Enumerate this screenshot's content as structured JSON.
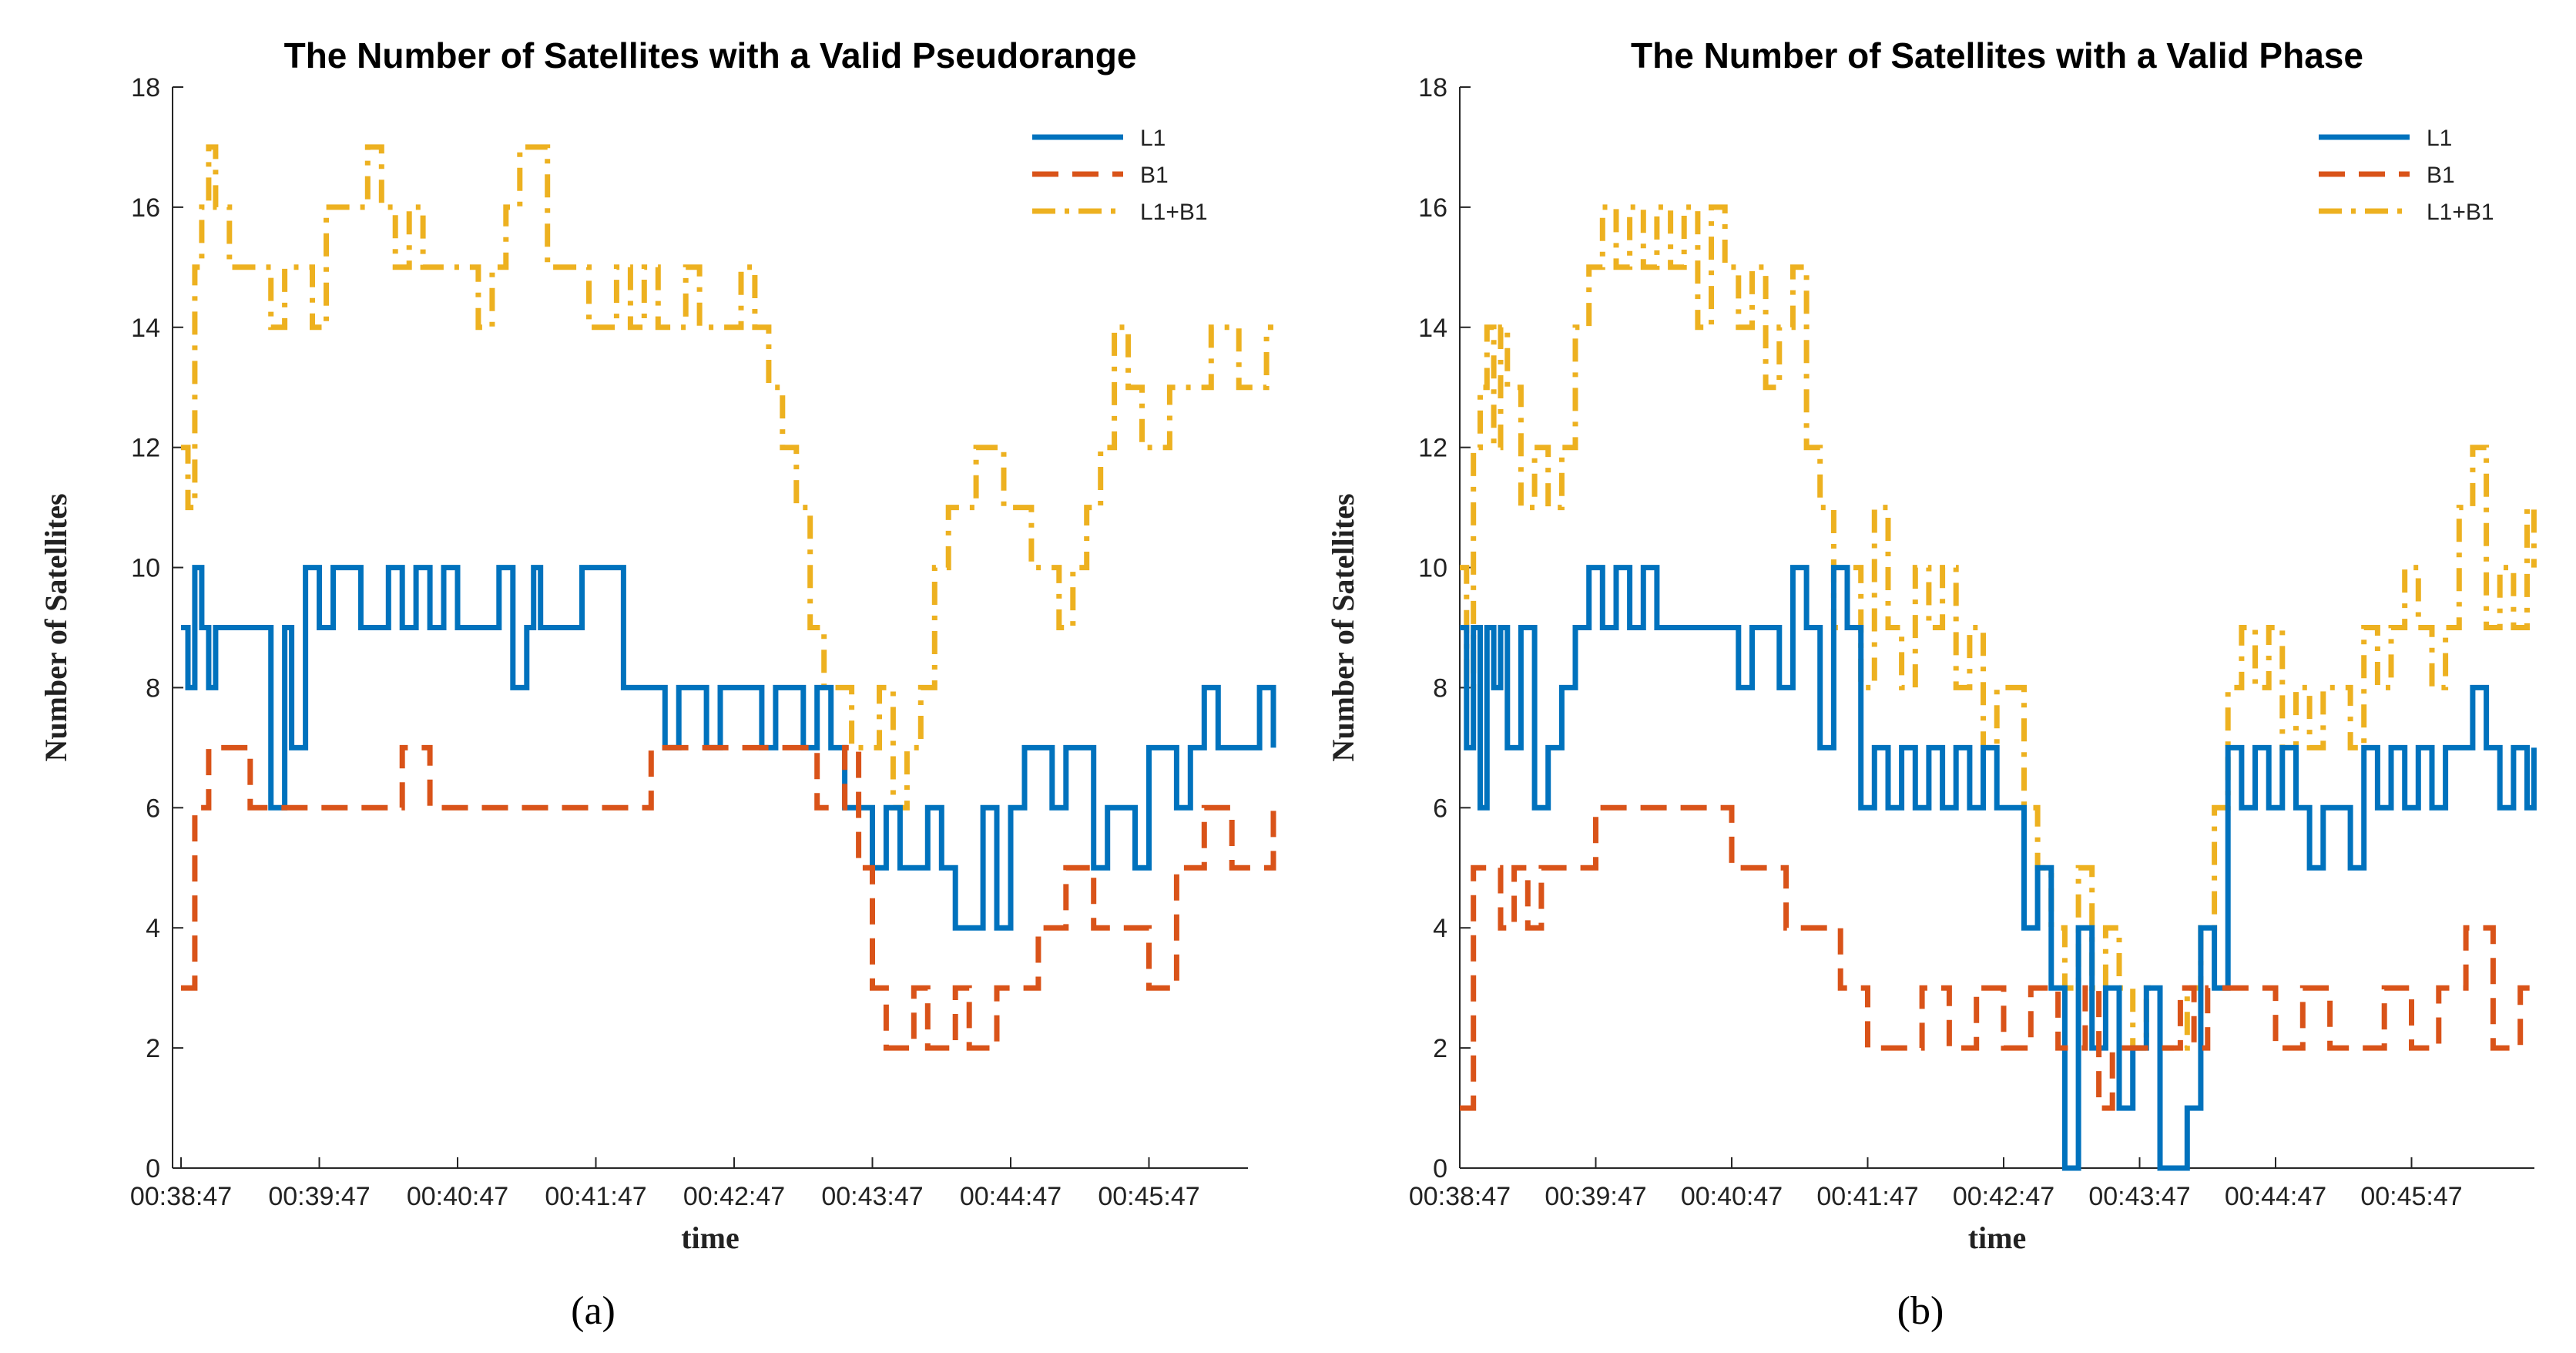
{
  "chart_data": [
    {
      "id": "a",
      "type": "line",
      "title": "The Number of Satellites with a Valid Pseudorange",
      "xlabel": "time",
      "ylabel": "Number of Satellites",
      "caption": "(a)",
      "ylim": [
        0,
        18
      ],
      "yticks": [
        "0",
        "2",
        "4",
        "6",
        "8",
        "10",
        "12",
        "14",
        "16",
        "18"
      ],
      "xlim": [
        0,
        8.0
      ],
      "xticks": [
        {
          "pos": 0,
          "label": "00:38:47"
        },
        {
          "pos": 1,
          "label": "00:39:47"
        },
        {
          "pos": 2,
          "label": "00:40:47"
        },
        {
          "pos": 3,
          "label": "00:41:47"
        },
        {
          "pos": 4,
          "label": "00:42:47"
        },
        {
          "pos": 5,
          "label": "00:43:47"
        },
        {
          "pos": 6,
          "label": "00:44:47"
        },
        {
          "pos": 7,
          "label": "00:45:47"
        }
      ],
      "legend_position": "top-right",
      "series": [
        {
          "name": "L1",
          "color": "#0072BD",
          "style": "solid",
          "x": [
            0,
            0.05,
            0.1,
            0.15,
            0.2,
            0.25,
            0.3,
            0.35,
            0.45,
            0.55,
            0.65,
            0.75,
            0.8,
            0.9,
            1.0,
            1.1,
            1.3,
            1.5,
            1.6,
            1.7,
            1.8,
            1.9,
            2.0,
            2.1,
            2.2,
            2.3,
            2.4,
            2.5,
            2.55,
            2.6,
            2.7,
            2.8,
            2.9,
            3.0,
            3.1,
            3.2,
            3.3,
            3.4,
            3.5,
            3.6,
            3.7,
            3.8,
            3.9,
            4.0,
            4.1,
            4.2,
            4.3,
            4.4,
            4.5,
            4.6,
            4.7,
            4.8,
            4.9,
            5.0,
            5.1,
            5.2,
            5.3,
            5.4,
            5.5,
            5.6,
            5.7,
            5.8,
            5.9,
            6.0,
            6.1,
            6.2,
            6.3,
            6.4,
            6.5,
            6.6,
            6.7,
            6.8,
            6.9,
            7.0,
            7.1,
            7.2,
            7.3,
            7.4,
            7.5,
            7.6,
            7.7,
            7.8,
            7.9
          ],
          "y": [
            9,
            8,
            10,
            9,
            8,
            9,
            9,
            9,
            9,
            9,
            6,
            9,
            7,
            10,
            9,
            10,
            9,
            10,
            9,
            10,
            9,
            10,
            9,
            9,
            9,
            10,
            8,
            9,
            10,
            9,
            9,
            9,
            10,
            10,
            10,
            8,
            8,
            8,
            7,
            8,
            8,
            7,
            8,
            8,
            8,
            7,
            8,
            8,
            7,
            8,
            7,
            6,
            6,
            5,
            6,
            5,
            5,
            6,
            5,
            4,
            4,
            6,
            4,
            6,
            7,
            7,
            6,
            7,
            7,
            5,
            6,
            6,
            5,
            7,
            7,
            6,
            7,
            8,
            7,
            7,
            7,
            8,
            7
          ]
        },
        {
          "name": "B1",
          "color": "#D95319",
          "style": "dashed",
          "x": [
            0,
            0.05,
            0.1,
            0.2,
            0.3,
            0.4,
            0.5,
            0.6,
            0.8,
            1.0,
            1.2,
            1.4,
            1.6,
            1.8,
            2.0,
            2.2,
            2.4,
            2.6,
            2.8,
            3.0,
            3.2,
            3.4,
            3.6,
            3.8,
            4.0,
            4.2,
            4.4,
            4.6,
            4.7,
            4.8,
            4.9,
            5.0,
            5.1,
            5.2,
            5.3,
            5.4,
            5.5,
            5.6,
            5.7,
            5.8,
            5.9,
            6.0,
            6.2,
            6.4,
            6.6,
            6.8,
            7.0,
            7.2,
            7.4,
            7.6,
            7.8,
            7.9
          ],
          "y": [
            3,
            3,
            6,
            7,
            7,
            7,
            6,
            6,
            6,
            6,
            6,
            6,
            7,
            6,
            6,
            6,
            6,
            6,
            6,
            6,
            6,
            7,
            7,
            7,
            7,
            7,
            7,
            6,
            6,
            7,
            5,
            3,
            2,
            2,
            3,
            2,
            2,
            3,
            2,
            2,
            3,
            3,
            4,
            5,
            4,
            4,
            3,
            5,
            6,
            5,
            5,
            6
          ]
        },
        {
          "name": "L1+B1",
          "color": "#EDB120",
          "style": "dashdot",
          "x": [
            0,
            0.05,
            0.1,
            0.15,
            0.2,
            0.25,
            0.3,
            0.35,
            0.45,
            0.55,
            0.65,
            0.75,
            0.85,
            0.95,
            1.05,
            1.15,
            1.25,
            1.35,
            1.45,
            1.55,
            1.65,
            1.75,
            1.85,
            1.95,
            2.05,
            2.15,
            2.25,
            2.35,
            2.45,
            2.55,
            2.65,
            2.75,
            2.85,
            2.95,
            3.05,
            3.15,
            3.25,
            3.35,
            3.45,
            3.55,
            3.65,
            3.75,
            3.85,
            3.95,
            4.05,
            4.15,
            4.25,
            4.35,
            4.45,
            4.55,
            4.65,
            4.75,
            4.85,
            4.95,
            5.05,
            5.15,
            5.25,
            5.35,
            5.45,
            5.55,
            5.65,
            5.75,
            5.85,
            5.95,
            6.05,
            6.15,
            6.25,
            6.35,
            6.45,
            6.55,
            6.65,
            6.75,
            6.85,
            6.95,
            7.05,
            7.15,
            7.25,
            7.35,
            7.45,
            7.55,
            7.65,
            7.75,
            7.85,
            7.9
          ],
          "y": [
            12,
            11,
            15,
            16,
            17,
            16,
            16,
            15,
            15,
            15,
            14,
            15,
            15,
            14,
            16,
            16,
            16,
            17,
            16,
            15,
            16,
            15,
            15,
            15,
            15,
            14,
            15,
            16,
            17,
            17,
            15,
            15,
            15,
            14,
            14,
            15,
            14,
            15,
            14,
            14,
            15,
            14,
            14,
            14,
            15,
            14,
            13,
            12,
            11,
            9,
            8,
            8,
            7,
            7,
            8,
            6,
            7,
            8,
            10,
            11,
            11,
            12,
            12,
            11,
            11,
            10,
            10,
            9,
            10,
            11,
            12,
            14,
            13,
            12,
            12,
            13,
            13,
            13,
            14,
            14,
            13,
            13,
            14,
            14
          ]
        }
      ]
    },
    {
      "id": "b",
      "type": "line",
      "title": "The Number of Satellites with a Valid Phase",
      "xlabel": "time",
      "ylabel": "Number of Satellites",
      "caption": "(b)",
      "ylim": [
        0,
        18
      ],
      "yticks": [
        "0",
        "2",
        "4",
        "6",
        "8",
        "10",
        "12",
        "14",
        "16",
        "18"
      ],
      "xlim": [
        0,
        8.0
      ],
      "xticks": [
        {
          "pos": 0,
          "label": "00:38:47"
        },
        {
          "pos": 1,
          "label": "00:39:47"
        },
        {
          "pos": 2,
          "label": "00:40:47"
        },
        {
          "pos": 3,
          "label": "00:41:47"
        },
        {
          "pos": 4,
          "label": "00:42:47"
        },
        {
          "pos": 5,
          "label": "00:43:47"
        },
        {
          "pos": 6,
          "label": "00:44:47"
        },
        {
          "pos": 7,
          "label": "00:45:47"
        }
      ],
      "legend_position": "top-right",
      "series": [
        {
          "name": "L1",
          "color": "#0072BD",
          "style": "solid",
          "x": [
            0,
            0.05,
            0.1,
            0.15,
            0.2,
            0.25,
            0.3,
            0.35,
            0.45,
            0.55,
            0.65,
            0.75,
            0.85,
            0.95,
            1.05,
            1.15,
            1.25,
            1.35,
            1.45,
            1.55,
            1.65,
            1.75,
            1.85,
            1.95,
            2.05,
            2.15,
            2.25,
            2.35,
            2.45,
            2.55,
            2.65,
            2.75,
            2.85,
            2.95,
            3.05,
            3.15,
            3.25,
            3.35,
            3.45,
            3.55,
            3.65,
            3.75,
            3.85,
            3.95,
            4.05,
            4.15,
            4.25,
            4.35,
            4.45,
            4.55,
            4.65,
            4.75,
            4.85,
            4.95,
            5.05,
            5.15,
            5.25,
            5.35,
            5.45,
            5.55,
            5.65,
            5.75,
            5.85,
            5.95,
            6.05,
            6.15,
            6.25,
            6.35,
            6.45,
            6.55,
            6.65,
            6.75,
            6.85,
            6.95,
            7.05,
            7.15,
            7.25,
            7.35,
            7.45,
            7.55,
            7.65,
            7.75,
            7.85,
            7.9
          ],
          "y": [
            9,
            7,
            9,
            6,
            9,
            8,
            9,
            7,
            9,
            6,
            7,
            8,
            9,
            10,
            9,
            10,
            9,
            10,
            9,
            9,
            9,
            9,
            9,
            9,
            8,
            9,
            9,
            8,
            10,
            9,
            7,
            10,
            9,
            6,
            7,
            6,
            7,
            6,
            7,
            6,
            7,
            6,
            7,
            6,
            6,
            4,
            5,
            3,
            0,
            4,
            2,
            3,
            1,
            2,
            3,
            0,
            0,
            1,
            4,
            3,
            7,
            6,
            7,
            6,
            7,
            6,
            5,
            6,
            6,
            5,
            7,
            6,
            7,
            6,
            7,
            6,
            7,
            7,
            8,
            7,
            6,
            7,
            6,
            7
          ]
        },
        {
          "name": "B1",
          "color": "#D95319",
          "style": "dashed",
          "x": [
            0,
            0.05,
            0.1,
            0.2,
            0.3,
            0.4,
            0.5,
            0.6,
            0.8,
            1.0,
            1.2,
            1.4,
            1.6,
            1.8,
            2.0,
            2.2,
            2.4,
            2.6,
            2.8,
            3.0,
            3.2,
            3.4,
            3.6,
            3.8,
            4.0,
            4.2,
            4.4,
            4.6,
            4.7,
            4.8,
            4.9,
            5.0,
            5.1,
            5.2,
            5.3,
            5.4,
            5.5,
            5.6,
            5.7,
            5.8,
            5.9,
            6.0,
            6.2,
            6.4,
            6.6,
            6.8,
            7.0,
            7.2,
            7.4,
            7.6,
            7.8,
            7.9
          ],
          "y": [
            1,
            1,
            5,
            5,
            4,
            5,
            4,
            5,
            5,
            6,
            6,
            6,
            6,
            6,
            5,
            5,
            4,
            4,
            3,
            2,
            2,
            3,
            2,
            3,
            2,
            3,
            2,
            3,
            1,
            2,
            2,
            2,
            2,
            2,
            3,
            2,
            3,
            3,
            3,
            3,
            3,
            2,
            3,
            2,
            2,
            3,
            2,
            3,
            4,
            2,
            3,
            3
          ]
        },
        {
          "name": "L1+B1",
          "color": "#EDB120",
          "style": "dashdot",
          "x": [
            0,
            0.05,
            0.1,
            0.15,
            0.2,
            0.25,
            0.3,
            0.35,
            0.45,
            0.55,
            0.65,
            0.75,
            0.85,
            0.95,
            1.05,
            1.15,
            1.25,
            1.35,
            1.45,
            1.55,
            1.65,
            1.75,
            1.85,
            1.95,
            2.05,
            2.15,
            2.25,
            2.35,
            2.45,
            2.55,
            2.65,
            2.75,
            2.85,
            2.95,
            3.05,
            3.15,
            3.25,
            3.35,
            3.45,
            3.55,
            3.65,
            3.75,
            3.85,
            3.95,
            4.05,
            4.15,
            4.25,
            4.35,
            4.45,
            4.55,
            4.65,
            4.75,
            4.85,
            4.95,
            5.05,
            5.15,
            5.25,
            5.35,
            5.45,
            5.55,
            5.65,
            5.75,
            5.85,
            5.95,
            6.05,
            6.15,
            6.25,
            6.35,
            6.45,
            6.55,
            6.65,
            6.75,
            6.85,
            6.95,
            7.05,
            7.15,
            7.25,
            7.35,
            7.45,
            7.55,
            7.65,
            7.75,
            7.85,
            7.9
          ],
          "y": [
            10,
            8,
            12,
            13,
            14,
            12,
            14,
            13,
            11,
            12,
            11,
            12,
            14,
            15,
            16,
            15,
            16,
            15,
            16,
            15,
            16,
            14,
            16,
            15,
            14,
            15,
            13,
            14,
            15,
            12,
            11,
            9,
            10,
            8,
            11,
            9,
            8,
            10,
            9,
            10,
            8,
            9,
            7,
            8,
            8,
            6,
            5,
            4,
            3,
            5,
            3,
            4,
            3,
            2,
            3,
            2,
            2,
            3,
            4,
            6,
            8,
            9,
            8,
            9,
            7,
            8,
            7,
            8,
            8,
            7,
            9,
            8,
            9,
            10,
            9,
            8,
            9,
            11,
            12,
            9,
            10,
            9,
            11,
            10
          ]
        }
      ]
    }
  ]
}
